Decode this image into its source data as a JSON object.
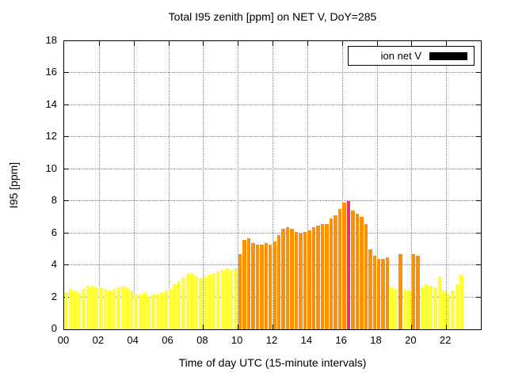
{
  "chart_data": {
    "type": "bar",
    "title": "Total I95 zenith [ppm] on NET V, DoY=285",
    "xlabel": "Time of day UTC (15-minute intervals)",
    "ylabel": "I95 [ppm]",
    "legend": [
      {
        "name": "ion net V",
        "swatch_color": "#000000"
      }
    ],
    "ylim": [
      0,
      18
    ],
    "xlim_hours": [
      0,
      24
    ],
    "y_ticks": [
      0,
      2,
      4,
      6,
      8,
      10,
      12,
      14,
      16,
      18
    ],
    "x_tick_hours": [
      0,
      2,
      4,
      6,
      8,
      10,
      12,
      14,
      16,
      18,
      20,
      22
    ],
    "x_tick_labels": [
      "00",
      "02",
      "04",
      "06",
      "08",
      "10",
      "12",
      "14",
      "16",
      "18",
      "20",
      "22"
    ],
    "grid": true,
    "interval_minutes": 15,
    "start_hour": 0,
    "values": [
      2.3,
      2.5,
      2.4,
      2.3,
      2.5,
      2.7,
      2.7,
      2.6,
      2.6,
      2.5,
      2.4,
      2.5,
      2.6,
      2.7,
      2.6,
      2.4,
      2.2,
      2.2,
      2.3,
      2.1,
      2.2,
      2.2,
      2.3,
      2.4,
      2.5,
      2.8,
      3.0,
      3.2,
      3.5,
      3.5,
      3.3,
      3.2,
      3.3,
      3.4,
      3.5,
      3.6,
      3.7,
      3.8,
      3.7,
      3.8,
      4.7,
      5.6,
      5.7,
      5.4,
      5.3,
      5.3,
      5.4,
      5.3,
      5.5,
      5.9,
      6.3,
      6.4,
      6.3,
      6.1,
      6.0,
      6.1,
      6.2,
      6.4,
      6.5,
      6.6,
      6.6,
      6.9,
      7.1,
      7.5,
      7.9,
      8.0,
      7.4,
      7.2,
      7.0,
      6.6,
      5.0,
      4.6,
      4.4,
      4.4,
      4.5,
      2.6,
      2.5,
      4.7,
      2.5,
      2.4,
      4.7,
      4.6,
      2.6,
      2.8,
      2.7,
      2.6,
      3.3,
      2.4,
      2.2,
      2.4,
      2.8,
      3.4
    ],
    "bar_colors": [
      "y",
      "y",
      "y",
      "y",
      "y",
      "y",
      "y",
      "y",
      "y",
      "y",
      "y",
      "y",
      "y",
      "y",
      "y",
      "y",
      "y",
      "y",
      "y",
      "y",
      "y",
      "y",
      "y",
      "y",
      "y",
      "y",
      "y",
      "y",
      "y",
      "y",
      "y",
      "y",
      "y",
      "y",
      "y",
      "y",
      "y",
      "y",
      "y",
      "y",
      "o",
      "o",
      "o",
      "o",
      "o",
      "o",
      "o",
      "o",
      "o",
      "o",
      "o",
      "o",
      "o",
      "o",
      "o",
      "o",
      "o",
      "o",
      "o",
      "o",
      "o",
      "o",
      "o",
      "o",
      "o",
      "r",
      "o",
      "o",
      "o",
      "o",
      "o",
      "o",
      "o",
      "o",
      "o",
      "y",
      "y",
      "o",
      "y",
      "y",
      "o",
      "o",
      "y",
      "y",
      "y",
      "y",
      "y",
      "y",
      "y",
      "y",
      "y",
      "y"
    ],
    "palette": {
      "y": "#ffff33",
      "o": "#ff9100",
      "r": "#e8356b"
    }
  }
}
